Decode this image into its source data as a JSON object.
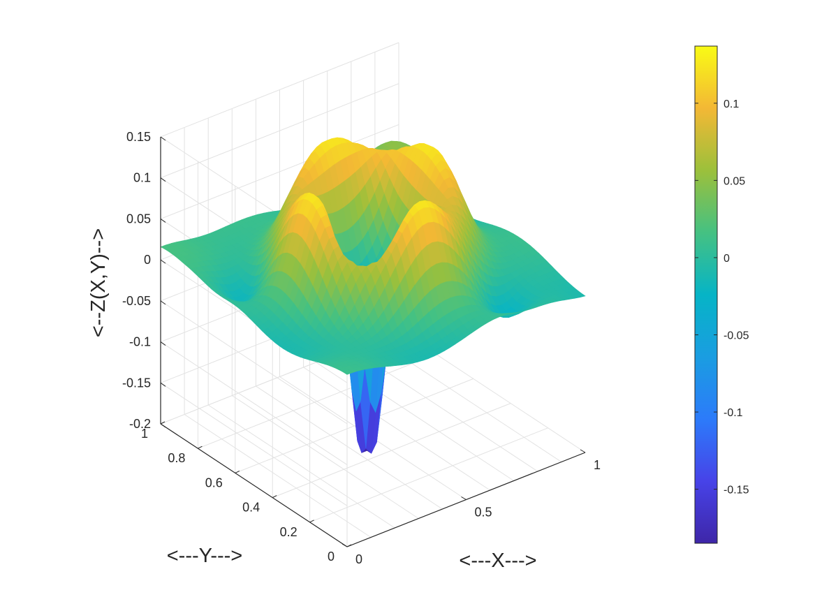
{
  "chart_data": {
    "type": "surface3d",
    "title": "",
    "xlabel": "<---X--->",
    "ylabel": "<---Y--->",
    "zlabel": "<--Z(X,Y)-->",
    "xlim": [
      0,
      1
    ],
    "ylim": [
      0,
      1
    ],
    "zlim": [
      -0.2,
      0.15
    ],
    "x_ticks": [
      "0",
      "0.5",
      "1"
    ],
    "y_ticks": [
      "0",
      "0.2",
      "0.4",
      "0.6",
      "0.8",
      "1"
    ],
    "z_ticks": [
      "-0.2",
      "-0.15",
      "-0.1",
      "-0.05",
      "0",
      "0.05",
      "0.1",
      "0.15"
    ],
    "grid": true,
    "colormap": "parula",
    "colorbar": {
      "range": [
        -0.185,
        0.137
      ],
      "ticks": [
        "-0.15",
        "-0.1",
        "-0.05",
        "0",
        "0.05",
        "0.1"
      ]
    },
    "surface_features": {
      "max_value": 0.137,
      "min_value": -0.185,
      "edge_value_at_x0_y1": 0.03,
      "edge_value_at_x1_y0": 0.0,
      "peak_ring_radius": 0.25,
      "deep_well_near": [
        0.38,
        0.38
      ]
    }
  }
}
